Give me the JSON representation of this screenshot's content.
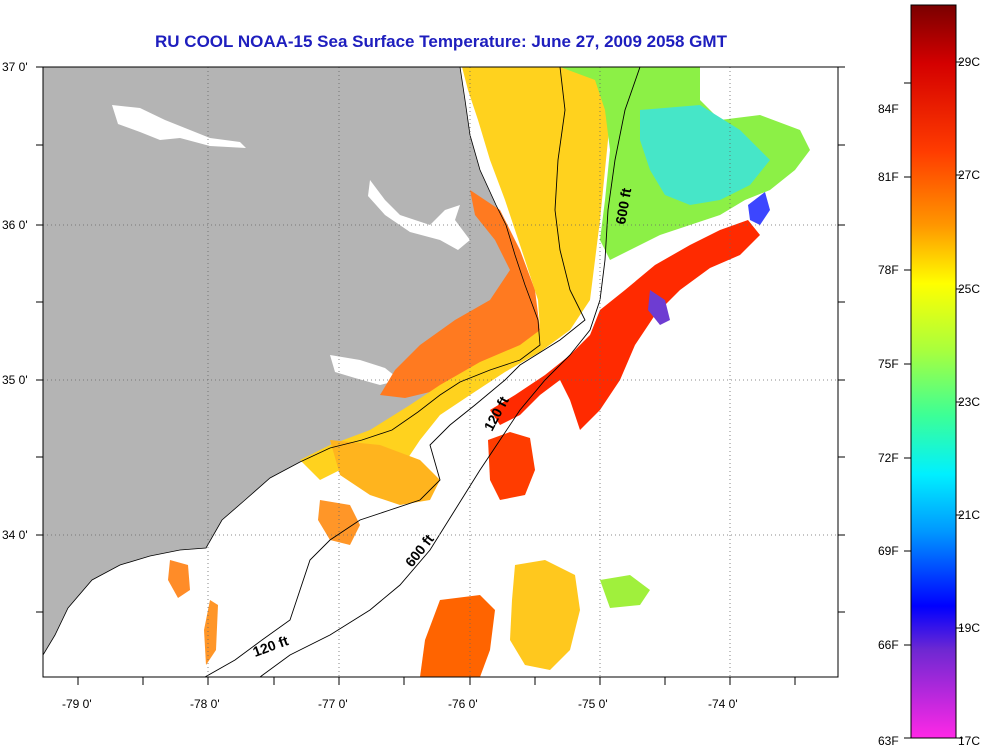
{
  "title": "RU COOL  NOAA-15  Sea Surface Temperature:  June 27, 2009 2058 GMT",
  "lat_labels": [
    "37 0'",
    "36 0'",
    "35 0'",
    "34 0'"
  ],
  "lon_labels": [
    "-79 0'",
    "-78 0'",
    "-77 0'",
    "-76 0'",
    "-75 0'",
    "-74 0'"
  ],
  "contour_labels": [
    "600 ft",
    "120 ft",
    "600 ft",
    "120 ft"
  ],
  "colorbar": {
    "celsius": [
      "29C",
      "27C",
      "25C",
      "23C",
      "21C",
      "19C",
      "17C"
    ],
    "fahrenheit": [
      "84F",
      "81F",
      "78F",
      "75F",
      "72F",
      "69F",
      "66F",
      "63F"
    ]
  },
  "colors": {
    "land": "#b4b4b4",
    "title": "#1e1ebe"
  }
}
